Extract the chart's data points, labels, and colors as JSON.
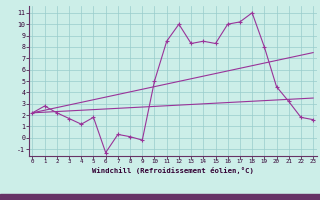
{
  "xlabel": "Windchill (Refroidissement éolien,°C)",
  "bg_color": "#cceee8",
  "line_color": "#993399",
  "grid_color": "#99cccc",
  "border_color": "#663366",
  "x_ticks": [
    0,
    1,
    2,
    3,
    4,
    5,
    6,
    7,
    8,
    9,
    10,
    11,
    12,
    13,
    14,
    15,
    16,
    17,
    18,
    19,
    20,
    21,
    22,
    23
  ],
  "y_ticks": [
    -1,
    0,
    1,
    2,
    3,
    4,
    5,
    6,
    7,
    8,
    9,
    10,
    11
  ],
  "xlim": [
    -0.3,
    23.3
  ],
  "ylim": [
    -1.6,
    11.6
  ],
  "line1_x": [
    0,
    1,
    2,
    3,
    4,
    5,
    6,
    7,
    8,
    9,
    10,
    11,
    12,
    13,
    14,
    15,
    16,
    17,
    18,
    19,
    20,
    21,
    22,
    23
  ],
  "line1_y": [
    2.2,
    2.8,
    2.2,
    1.7,
    1.2,
    1.8,
    -1.3,
    0.3,
    0.1,
    -0.2,
    5.0,
    8.5,
    10.0,
    8.3,
    8.5,
    8.3,
    10.0,
    10.2,
    11.0,
    8.0,
    4.5,
    3.2,
    1.8,
    1.6
  ],
  "line2_x": [
    0,
    23
  ],
  "line2_y": [
    2.2,
    7.5
  ],
  "line3_x": [
    0,
    23
  ],
  "line3_y": [
    2.2,
    3.5
  ]
}
